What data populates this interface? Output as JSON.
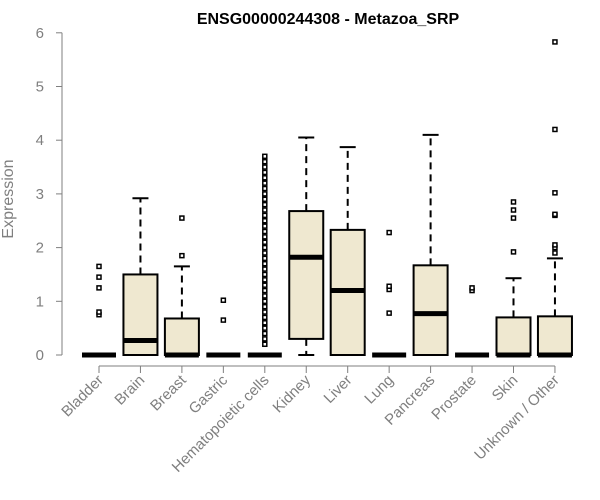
{
  "chart_data": {
    "type": "boxplot",
    "title": "ENSG00000244308 - Metazoa_SRP",
    "xlabel": "",
    "ylabel": "Expression",
    "ylim": [
      0,
      6
    ],
    "yticks": [
      0,
      1,
      2,
      3,
      4,
      5,
      6
    ],
    "grid": false,
    "legend": "none",
    "colors": {
      "box_fill": "#efe8d0",
      "box_stroke": "#000000",
      "axis": "#7f7f7f",
      "title": "#000000"
    },
    "categories": [
      "Bladder",
      "Brain",
      "Breast",
      "Gastric",
      "Hematopoietic cells",
      "Kidney",
      "Liver",
      "Lung",
      "Pancreas",
      "Prostate",
      "Skin",
      "Unknown / Other"
    ],
    "boxes": [
      {
        "category": "Bladder",
        "whisker_low": 0,
        "q1": 0,
        "median": 0,
        "q3": 0,
        "whisker_high": 0,
        "outliers": [
          0.75,
          0.8,
          1.25,
          1.45,
          1.65
        ]
      },
      {
        "category": "Brain",
        "whisker_low": 0,
        "q1": 0,
        "median": 0.27,
        "q3": 1.5,
        "whisker_high": 2.92,
        "outliers": []
      },
      {
        "category": "Breast",
        "whisker_low": 0,
        "q1": 0,
        "median": 0,
        "q3": 0.68,
        "whisker_high": 1.65,
        "outliers": [
          1.85,
          2.55
        ]
      },
      {
        "category": "Gastric",
        "whisker_low": 0,
        "q1": 0,
        "median": 0,
        "q3": 0,
        "whisker_high": 0,
        "outliers": [
          0.65,
          1.02
        ]
      },
      {
        "category": "Hematopoietic cells",
        "whisker_low": 0,
        "q1": 0,
        "median": 0,
        "q3": 0,
        "whisker_high": 0,
        "outliers": [
          0.2,
          0.3,
          0.4,
          0.5,
          0.6,
          0.7,
          0.8,
          0.9,
          1.0,
          1.1,
          1.2,
          1.3,
          1.4,
          1.5,
          1.6,
          1.7,
          1.8,
          1.9,
          2.0,
          2.1,
          2.2,
          2.3,
          2.4,
          2.5,
          2.6,
          2.7,
          2.8,
          2.9,
          3.0,
          3.1,
          3.2,
          3.3,
          3.4,
          3.5,
          3.6,
          3.7
        ]
      },
      {
        "category": "Kidney",
        "whisker_low": 0,
        "q1": 0.3,
        "median": 1.82,
        "q3": 2.68,
        "whisker_high": 4.05,
        "outliers": []
      },
      {
        "category": "Liver",
        "whisker_low": 0,
        "q1": 0,
        "median": 1.2,
        "q3": 2.33,
        "whisker_high": 3.87,
        "outliers": []
      },
      {
        "category": "Lung",
        "whisker_low": 0,
        "q1": 0,
        "median": 0,
        "q3": 0,
        "whisker_high": 0,
        "outliers": [
          0.78,
          1.22,
          1.28,
          2.28
        ]
      },
      {
        "category": "Pancreas",
        "whisker_low": 0,
        "q1": 0,
        "median": 0.77,
        "q3": 1.67,
        "whisker_high": 4.1,
        "outliers": []
      },
      {
        "category": "Prostate",
        "whisker_low": 0,
        "q1": 0,
        "median": 0,
        "q3": 0,
        "whisker_high": 0,
        "outliers": [
          1.2,
          1.25
        ]
      },
      {
        "category": "Skin",
        "whisker_low": 0,
        "q1": 0,
        "median": 0,
        "q3": 0.7,
        "whisker_high": 1.43,
        "outliers": [
          1.92,
          2.55,
          2.7,
          2.85
        ]
      },
      {
        "category": "Unknown / Other",
        "whisker_low": 0,
        "q1": 0,
        "median": 0,
        "q3": 0.72,
        "whisker_high": 1.8,
        "outliers": [
          1.9,
          2.0,
          2.05,
          2.6,
          2.62,
          3.02,
          4.2,
          5.83
        ]
      }
    ]
  }
}
